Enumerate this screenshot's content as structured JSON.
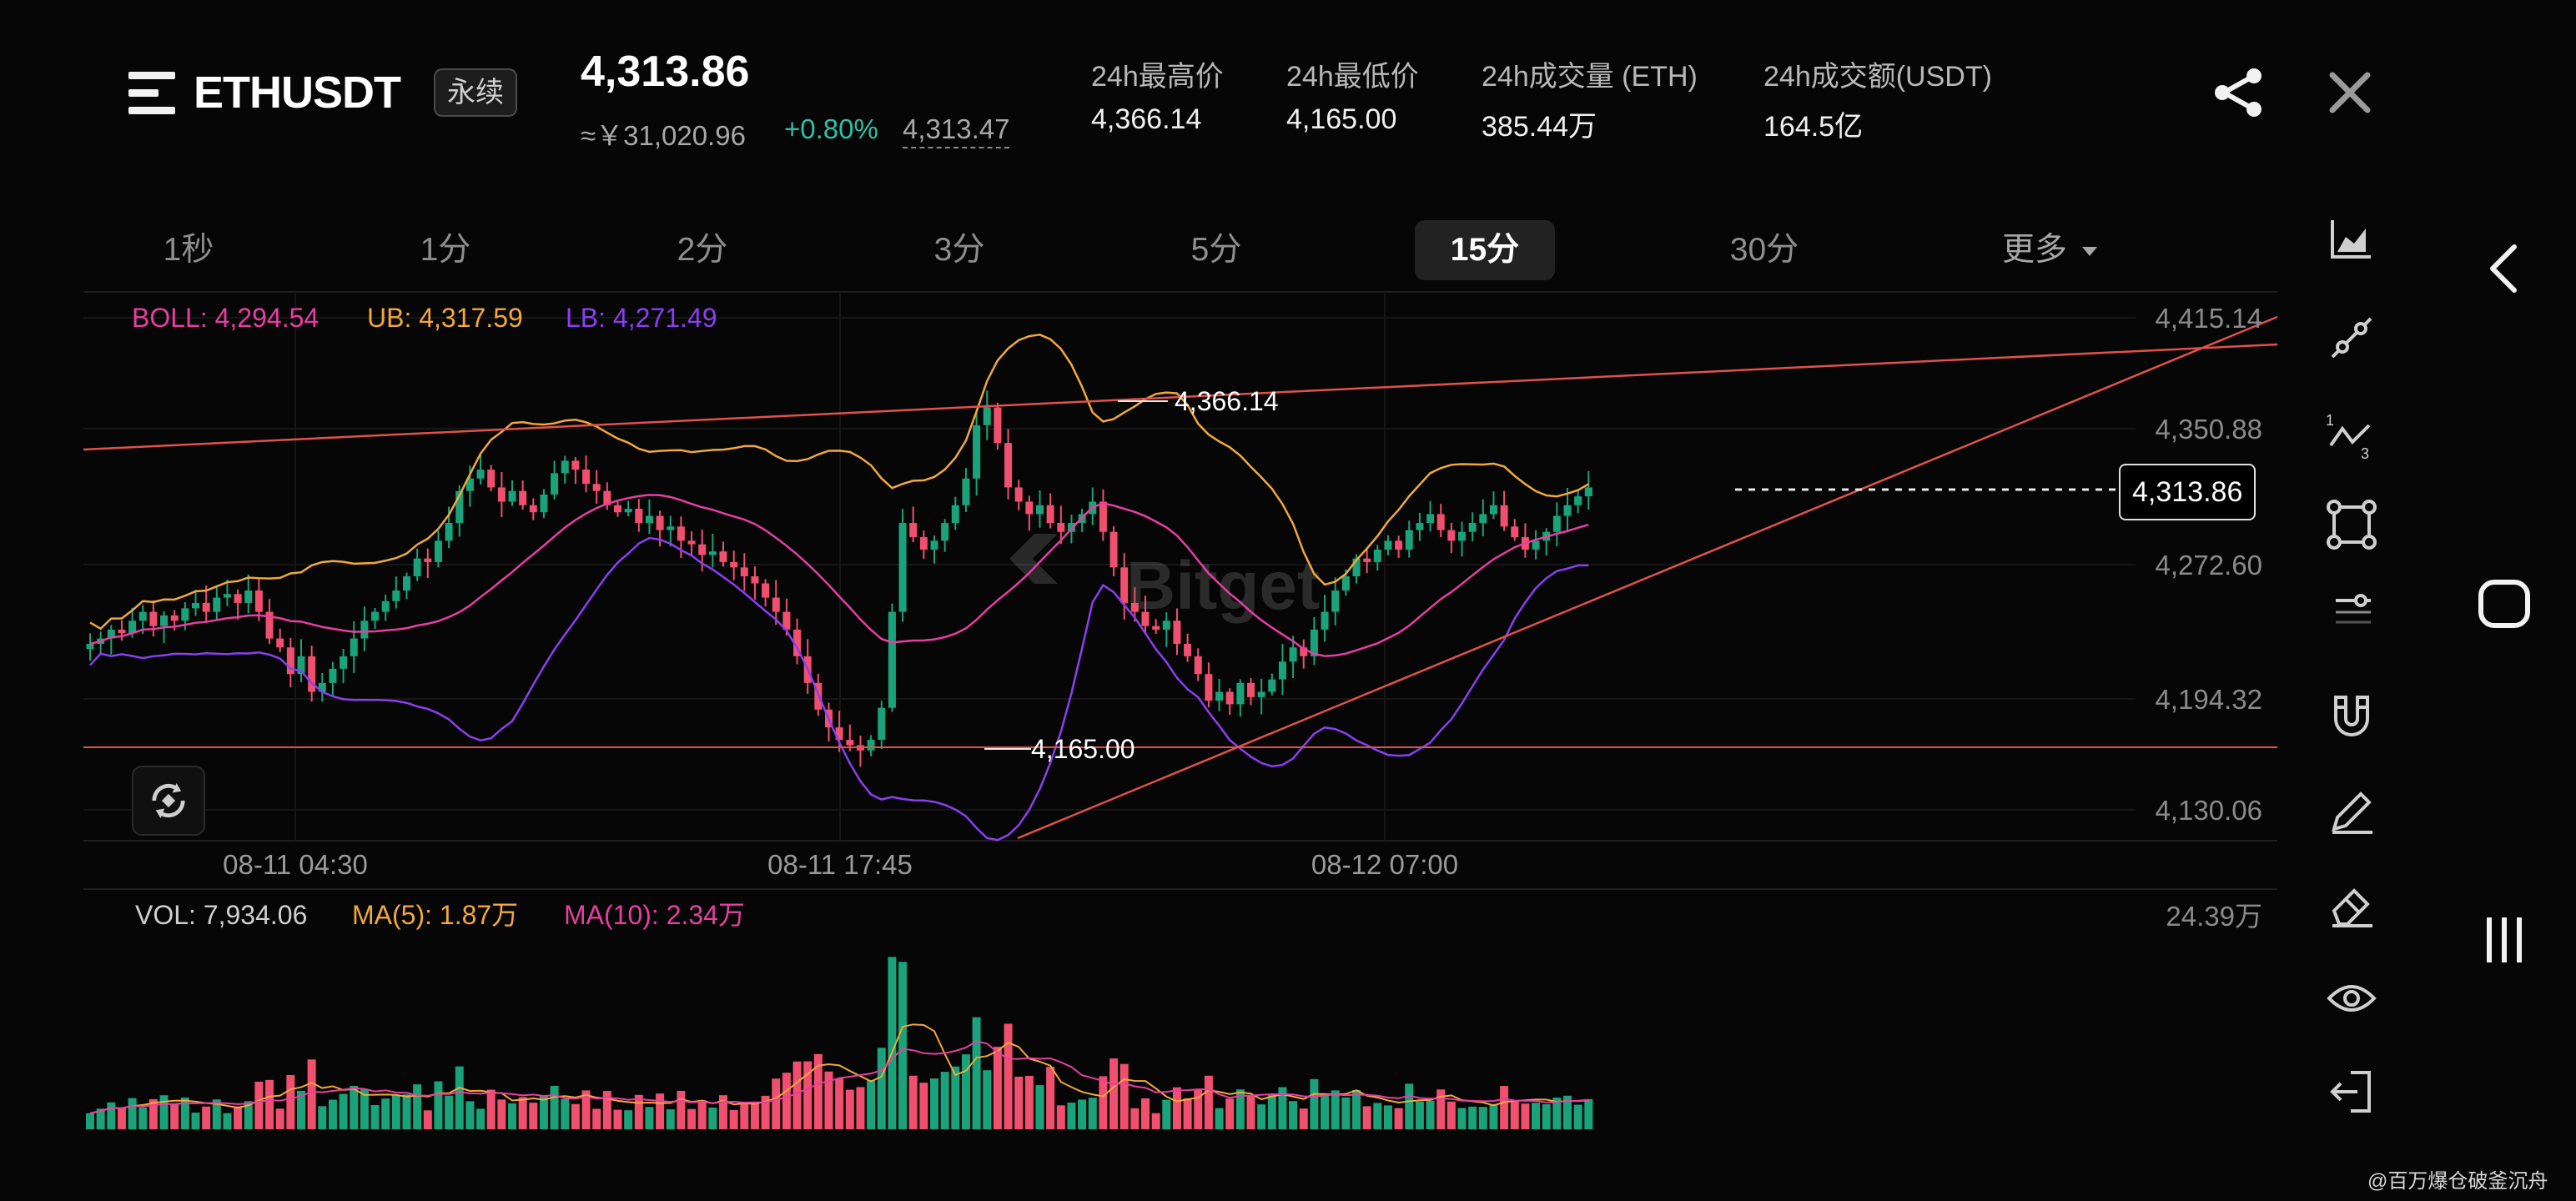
{
  "header": {
    "symbol": "ETHUSDT",
    "contract_type": "永续",
    "last_price": "4,313.86",
    "price_cny": "≈￥31,020.96",
    "change_pct": "+0.80%",
    "index_price": "4,313.47",
    "stats": [
      {
        "label": "24h最高价",
        "value": "4,366.14"
      },
      {
        "label": "24h最低价",
        "value": "4,165.00"
      },
      {
        "label": "24h成交量 (ETH)",
        "value": "385.44万"
      },
      {
        "label": "24h成交额(USDT)",
        "value": "164.5亿"
      }
    ]
  },
  "intervals": {
    "tabs": [
      "1秒",
      "1分",
      "2分",
      "3分",
      "5分",
      "15分",
      "30分"
    ],
    "active": "15分",
    "more_label": "更多"
  },
  "boll_legend": {
    "boll": "BOLL: 4,294.54",
    "ub": "UB: 4,317.59",
    "lb": "LB: 4,271.49"
  },
  "price_axis": [
    "4,415.14",
    "4,350.88",
    "4,272.60",
    "4,194.32",
    "4,130.06"
  ],
  "time_axis": [
    "08-11 04:30",
    "08-11 17:45",
    "08-12 07:00"
  ],
  "annotations": {
    "high_marker": "4,366.14",
    "low_marker": "4,165.00",
    "current_price": "4,313.86"
  },
  "chart_watermark": "Bitget",
  "volume_legend": {
    "vol": "VOL: 7,934.06",
    "ma5": "MA(5): 1.87万",
    "ma10": "MA(10): 2.34万"
  },
  "volume_axis_max": "24.39万",
  "watermark": "@百万爆仓破釜沉舟",
  "colors": {
    "up": "#1aa37a",
    "down": "#f0506e",
    "boll_mid": "#e63fa0",
    "boll_upper": "#f2a83a",
    "boll_lower": "#8a3ff0",
    "trendline": "#e0524a",
    "accent_change": "#2fbfa6"
  },
  "tools": [
    "area-chart-icon",
    "trend-line-icon",
    "wave-icon",
    "rectangle-icon",
    "fib-icon",
    "magnet-icon",
    "pencil-icon",
    "eraser-icon",
    "eye-icon",
    "exit-icon"
  ],
  "chart_data": {
    "type": "candlestick",
    "title": "",
    "x_ticks": [
      "08-11 04:30",
      "08-11 17:45",
      "08-12 07:00"
    ],
    "y_ticks": [
      4415.14,
      4350.88,
      4272.6,
      4194.32,
      4130.06
    ],
    "ylim": [
      4125,
      4430
    ],
    "annotations": {
      "high": 4366.14,
      "low": 4165.0,
      "last": 4313.86
    },
    "closes": [
      4232,
      4235,
      4240,
      4238,
      4245,
      4250,
      4242,
      4248,
      4245,
      4252,
      4255,
      4250,
      4258,
      4260,
      4255,
      4262,
      4250,
      4235,
      4230,
      4215,
      4225,
      4205,
      4210,
      4218,
      4225,
      4235,
      4245,
      4250,
      4256,
      4262,
      4270,
      4280,
      4278,
      4290,
      4300,
      4318,
      4325,
      4330,
      4320,
      4312,
      4318,
      4310,
      4306,
      4316,
      4328,
      4335,
      4330,
      4322,
      4318,
      4310,
      4306,
      4308,
      4300,
      4304,
      4296,
      4298,
      4290,
      4288,
      4282,
      4284,
      4278,
      4275,
      4270,
      4266,
      4258,
      4250,
      4240,
      4225,
      4210,
      4195,
      4185,
      4178,
      4175,
      4172,
      4178,
      4196,
      4250,
      4300,
      4292,
      4285,
      4290,
      4300,
      4310,
      4325,
      4355,
      4365,
      4345,
      4320,
      4312,
      4305,
      4310,
      4300,
      4295,
      4300,
      4305,
      4312,
      4295,
      4275,
      4255,
      4250,
      4242,
      4240,
      4245,
      4232,
      4225,
      4215,
      4200,
      4205,
      4198,
      4210,
      4202,
      4205,
      4212,
      4222,
      4230,
      4225,
      4240,
      4250,
      4262,
      4270,
      4280,
      4278,
      4285,
      4290,
      4285,
      4296,
      4300,
      4305,
      4296,
      4290,
      4295,
      4300,
      4305,
      4310,
      4298,
      4292,
      4285,
      4290,
      4295,
      4304,
      4310,
      4315,
      4320
    ],
    "volume_scale_max": "24.39万"
  }
}
